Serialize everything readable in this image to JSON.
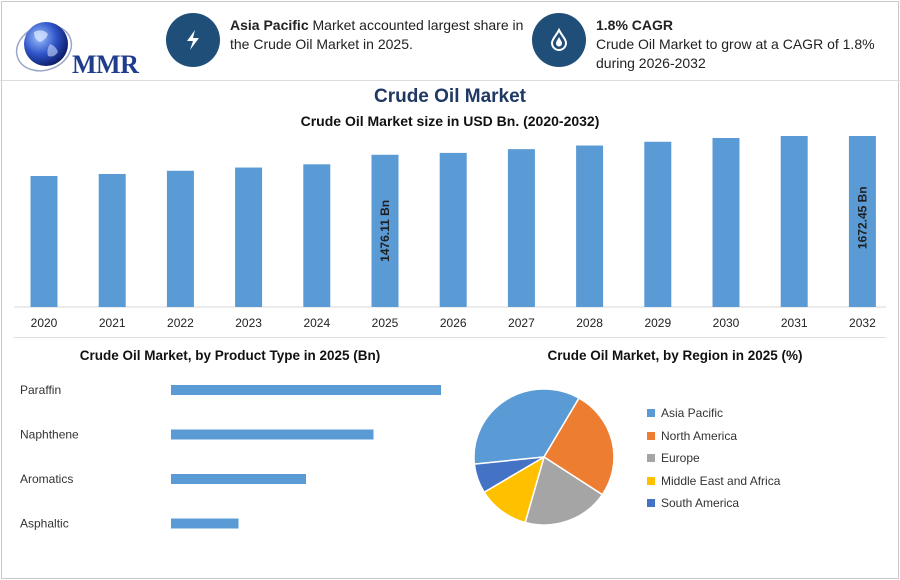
{
  "header": {
    "logo_text": "MMR",
    "card1": {
      "icon": "lightning-icon",
      "bold": "Asia Pacific",
      "text_rest": " Market accounted largest share in",
      "text_line2": "the Crude Oil Market in 2025."
    },
    "card2": {
      "icon": "oil-drop-icon",
      "bold": "1.8% CAGR",
      "text_line1": "Crude Oil Market to grow at a CAGR of 1.8%",
      "text_line2": "during 2026-2032"
    }
  },
  "title": "Crude Oil Market",
  "subtitle": "Crude Oil Market size in USD Bn. (2020-2032)",
  "colors": {
    "bar": "#5b9bd5",
    "asia_pacific": "#5b9bd5",
    "north_america": "#ed7d31",
    "europe": "#a5a5a5",
    "mea": "#ffc000",
    "south_america": "#4472c4"
  },
  "chart_data": [
    {
      "type": "bar",
      "title": "Crude Oil Market size in USD Bn. (2020-2032)",
      "categories": [
        "2020",
        "2021",
        "2022",
        "2023",
        "2024",
        "2025",
        "2026",
        "2027",
        "2028",
        "2029",
        "2030",
        "2031",
        "2032"
      ],
      "values": [
        1318,
        1333,
        1357,
        1381,
        1405,
        1476.11,
        1490,
        1518,
        1545,
        1573,
        1601,
        1630,
        1672.45
      ],
      "value_labels": [
        null,
        null,
        null,
        null,
        null,
        "1476.11 Bn",
        null,
        null,
        null,
        null,
        null,
        null,
        "1672.45 Bn"
      ]
    },
    {
      "type": "bar",
      "orientation": "horizontal",
      "title": "Crude Oil Market, by Product Type in 2025 (Bn)",
      "categories": [
        "Paraffin",
        "Naphthene",
        "Aromatics",
        "Asphaltic"
      ],
      "values": [
        600,
        450,
        300,
        150
      ]
    },
    {
      "type": "pie",
      "title": "Crude Oil Market, by Region in 2025 (%)",
      "categories": [
        "Asia Pacific",
        "North America",
        "Europe",
        "Middle East and Africa",
        "South America"
      ],
      "values": [
        35,
        26,
        20,
        12,
        7
      ],
      "legend_position": "right"
    }
  ]
}
